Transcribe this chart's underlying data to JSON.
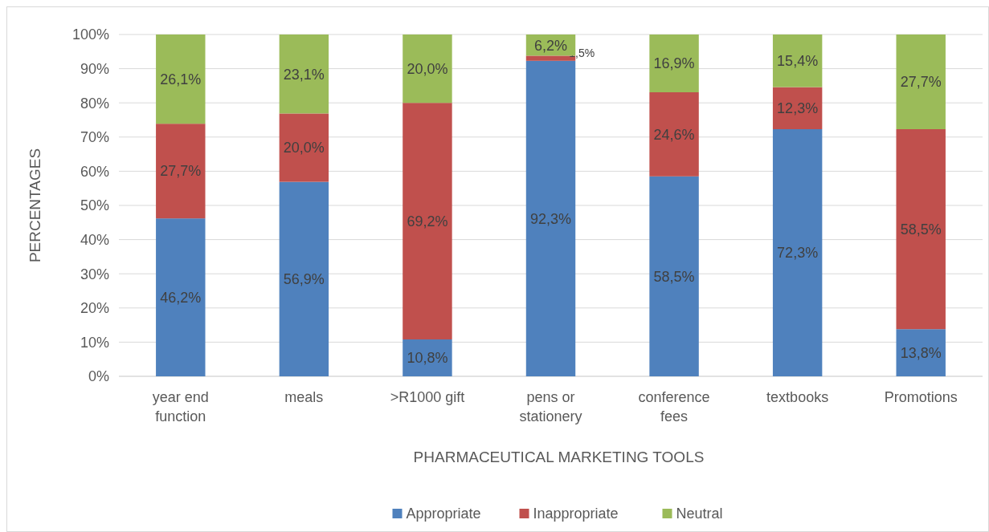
{
  "chart_data": {
    "type": "bar",
    "stacked": true,
    "xlabel": "PHARMACEUTICAL MARKETING TOOLS",
    "ylabel": "PERCENTAGES",
    "categories": [
      "year end function",
      "meals",
      ">R1000 gift",
      "pens or stationery",
      "conference fees",
      "textbooks",
      "Promotions"
    ],
    "series": [
      {
        "name": "Appropriate",
        "color": "#4f81bd",
        "values": [
          46.2,
          56.9,
          10.8,
          92.3,
          58.5,
          72.3,
          13.8
        ],
        "value_labels": [
          "46,2%",
          "56,9%",
          "10,8%",
          "92,3%",
          "58,5%",
          "72,3%",
          "13,8%"
        ]
      },
      {
        "name": "Inappropriate",
        "color": "#c0504d",
        "values": [
          27.7,
          20.0,
          69.2,
          1.5,
          24.6,
          12.3,
          58.5
        ],
        "value_labels": [
          "27,7%",
          "20,0%",
          "69,2%",
          "1,5%",
          "24,6%",
          "12,3%",
          "58,5%"
        ]
      },
      {
        "name": "Neutral",
        "color": "#9bbb59",
        "values": [
          26.1,
          23.1,
          20.0,
          6.2,
          16.9,
          15.4,
          27.7
        ],
        "value_labels": [
          "26,1%",
          "23,1%",
          "20,0%",
          "6,2%",
          "16,9%",
          "15,4%",
          "27,7%"
        ]
      }
    ],
    "ylim": [
      0,
      100
    ],
    "yticks": [
      {
        "value": 0,
        "label": "0%"
      },
      {
        "value": 10,
        "label": "10%"
      },
      {
        "value": 20,
        "label": "20%"
      },
      {
        "value": 30,
        "label": "30%"
      },
      {
        "value": 40,
        "label": "40%"
      },
      {
        "value": 50,
        "label": "50%"
      },
      {
        "value": 60,
        "label": "60%"
      },
      {
        "value": 70,
        "label": "70%"
      },
      {
        "value": 80,
        "label": "80%"
      },
      {
        "value": 90,
        "label": "90%"
      },
      {
        "value": 100,
        "label": "100%"
      }
    ],
    "grid": "y",
    "legend": "bottom"
  }
}
